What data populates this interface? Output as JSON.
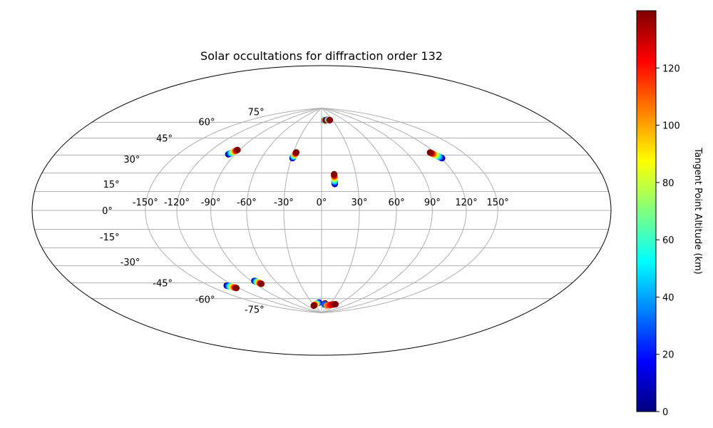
{
  "chart_data": {
    "type": "scatter",
    "projection": "aitoff-hammer (mollweide-style ellipse)",
    "title": "Solar occultations for diffraction order 132",
    "xlabel": "",
    "ylabel": "",
    "xlim": [
      -180,
      180
    ],
    "ylim": [
      -90,
      90
    ],
    "grid": true,
    "lon_ticks": [
      -150,
      -120,
      -90,
      -60,
      -30,
      0,
      30,
      60,
      90,
      120,
      150
    ],
    "lon_tick_labels": [
      "-150°",
      "-120°",
      "-90°",
      "-60°",
      "-30°",
      "0°",
      "30°",
      "60°",
      "90°",
      "120°",
      "150°"
    ],
    "lat_ticks": [
      75,
      60,
      45,
      30,
      15,
      0,
      -15,
      -30,
      -45,
      -60,
      -75
    ],
    "lat_tick_labels": [
      "75°",
      "60°",
      "45°",
      "30°",
      "15°",
      "0°",
      "-15°",
      "-30°",
      "-45°",
      "-60°",
      "-75°"
    ],
    "colorbar": {
      "label": "Tangent Point Altitude (km)",
      "colormap": "jet",
      "range": [
        0,
        140
      ],
      "ticks": [
        0,
        20,
        40,
        60,
        80,
        100,
        120
      ],
      "tick_labels": [
        "0",
        "20",
        "40",
        "60",
        "80",
        "100",
        "120"
      ]
    },
    "series": [
      {
        "lon_start": 8,
        "lat_start": 77,
        "lon_end": 12,
        "lat_end": 77,
        "alt_start": 0,
        "alt_end": 140
      },
      {
        "lon_start": 16,
        "lat_start": 77.5,
        "lon_end": 23,
        "lat_end": 77,
        "alt_start": 0,
        "alt_end": 140
      },
      {
        "lon_start": -97,
        "lat_start": 42,
        "lon_end": -92,
        "lat_end": 46,
        "alt_start": 0,
        "alt_end": 140
      },
      {
        "lon_start": -29,
        "lat_start": 42,
        "lon_end": -27,
        "lat_end": 47,
        "alt_start": 0,
        "alt_end": 140
      },
      {
        "lon_start": 121,
        "lat_start": 37,
        "lon_end": 115,
        "lat_end": 42,
        "alt_start": 0,
        "alt_end": 140
      },
      {
        "lon_start": 11,
        "lat_start": 21,
        "lon_end": 11,
        "lat_end": 29,
        "alt_start": 0,
        "alt_end": 140
      },
      {
        "lon_start": -129,
        "lat_start": -55,
        "lon_end": -123,
        "lat_end": -58,
        "alt_start": 0,
        "alt_end": 140
      },
      {
        "lon_start": -86,
        "lat_start": -55,
        "lon_end": -82,
        "lat_end": -58,
        "alt_start": 0,
        "alt_end": 140
      },
      {
        "lon_start": -8,
        "lat_start": -79,
        "lon_end": -34,
        "lat_end": -82,
        "alt_start": 0,
        "alt_end": 140
      },
      {
        "lon_start": 12,
        "lat_start": -80,
        "lon_end": 12,
        "lat_end": -80,
        "alt_start": 140,
        "alt_end": 140
      },
      {
        "lon_start": 12,
        "lat_start": -81,
        "lon_end": 12,
        "lat_end": -81,
        "alt_start": 30,
        "alt_end": 30
      },
      {
        "lon_start": 23,
        "lat_start": -82,
        "lon_end": 50,
        "lat_end": -80,
        "alt_start": 100,
        "alt_end": 140
      }
    ]
  }
}
